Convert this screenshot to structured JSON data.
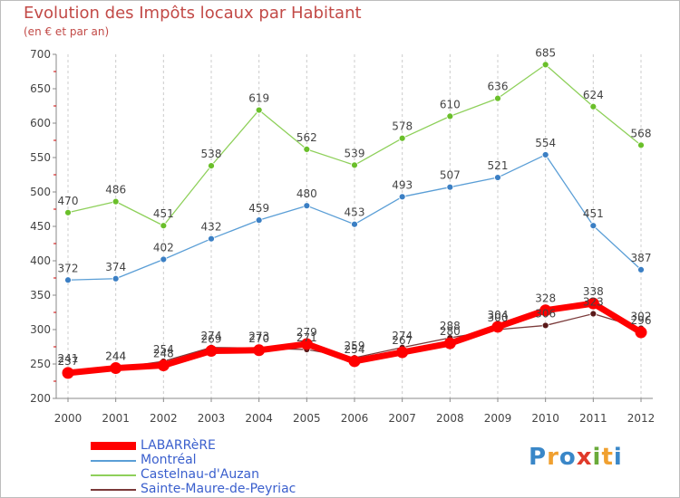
{
  "header": {
    "title": "Evolution des Impôts locaux par Habitant",
    "subtitle": "(en € et par an)"
  },
  "brand": {
    "logo_text": "Proxiti",
    "letter_colors": [
      "#3a87c8",
      "#f0a030",
      "#3a87c8",
      "#e03a2a",
      "#6aaa3a",
      "#f0a030",
      "#3a87c8"
    ]
  },
  "colors": {
    "LABARRèRE": "#ff0000",
    "Montréal": "#5a9ed6",
    "Castelnau-d'Auzan": "#8ed05a",
    "Sainte-Maure-de-Peyriac": "#7a3a3a",
    "marker_LABARRèRE": "#ff0000",
    "marker_Montréal": "#3b7fc4",
    "marker_Castelnau-d'Auzan": "#6abf2a",
    "marker_Sainte-Maure-de-Peyriac": "#5a1a1a",
    "text": "#444444",
    "title": "#c24a47",
    "grid": "#cccccc",
    "legend_text": "#3a5fcd"
  },
  "chart_data": {
    "type": "line",
    "title": "Evolution des Impôts locaux par Habitant",
    "subtitle": "(en € et par an)",
    "xlabel": "",
    "ylabel": "",
    "ylim": [
      200,
      700
    ],
    "yticks": [
      200,
      250,
      300,
      350,
      400,
      450,
      500,
      550,
      600,
      650,
      700
    ],
    "categories": [
      "2000",
      "2001",
      "2002",
      "2003",
      "2004",
      "2005",
      "2006",
      "2007",
      "2008",
      "2009",
      "2010",
      "2011",
      "2012"
    ],
    "grid": "vertical",
    "legend_position": "bottom-left",
    "series": [
      {
        "name": "LABARRèRE",
        "values": [
          237,
          244,
          248,
          269,
          270,
          279,
          254,
          267,
          280,
          304,
          328,
          338,
          296
        ]
      },
      {
        "name": "Montréal",
        "values": [
          372,
          374,
          402,
          432,
          459,
          480,
          453,
          493,
          507,
          521,
          554,
          451,
          387
        ]
      },
      {
        "name": "Castelnau-d'Auzan",
        "values": [
          470,
          486,
          451,
          538,
          619,
          562,
          539,
          578,
          610,
          636,
          685,
          624,
          568
        ]
      },
      {
        "name": "Sainte-Maure-de-Peyriac",
        "values": [
          241,
          244,
          254,
          274,
          273,
          271,
          259,
          274,
          288,
          300,
          306,
          323,
          302
        ]
      }
    ]
  }
}
